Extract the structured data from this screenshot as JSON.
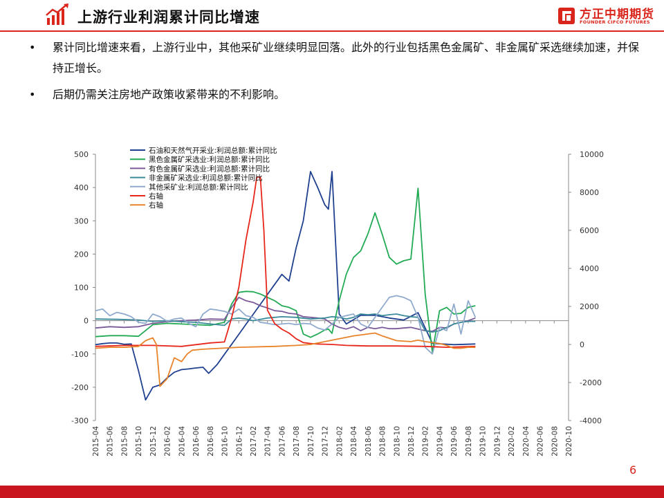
{
  "header": {
    "title": "上游行业利润累计同比增速",
    "brand_cn": "方正中期期货",
    "brand_en": "FOUNDER CIFCO FUTURES"
  },
  "bullets": [
    "累计同比增速来看，上游行业中，其他采矿业继续明显回落。此外的行业包括黑色金属矿、非金属矿采选继续加速，并保持正增长。",
    "后期仍需关注房地产政策收紧带来的不利影响。"
  ],
  "page_number": "6",
  "colors": {
    "accent": "#d9251c",
    "oil": "#1f3f8f",
    "ferrous": "#22aa55",
    "nonferrous": "#7a5a99",
    "nonmetal": "#3a8a9a",
    "other": "#8faacc",
    "right_red": "#e8251a",
    "right_orange": "#e8832a"
  },
  "chart_data": {
    "type": "line",
    "x": [
      "2015-04",
      "2015-06",
      "2015-08",
      "2015-10",
      "2015-12",
      "2016-02",
      "2016-04",
      "2016-06",
      "2016-08",
      "2016-10",
      "2016-12",
      "2017-02",
      "2017-04",
      "2017-06",
      "2017-08",
      "2017-10",
      "2017-12",
      "2018-02",
      "2018-04",
      "2018-06",
      "2018-08",
      "2018-10",
      "2018-12",
      "2019-02",
      "2019-04",
      "2019-06",
      "2019-08",
      "2019-10",
      "2019-12",
      "2020-02",
      "2020-04",
      "2020-06",
      "2020-08",
      "2020-10"
    ],
    "yleft_ticks": [
      "500",
      "400",
      "300",
      "200",
      "100",
      "0",
      "-100",
      "-200",
      "-300"
    ],
    "yright_ticks": [
      "10000",
      "8000",
      "6000",
      "4000",
      "2000",
      "0",
      "-2000",
      "-4000"
    ],
    "yleft_lim": [
      -300,
      500
    ],
    "yright_lim": [
      -4000,
      10000
    ],
    "legend_position": "top-left",
    "series": [
      {
        "name": "石油和天然气开采业:利润总额:累计同比",
        "axis": "left",
        "color_key": "oil",
        "values": [
          [
            0,
            -72
          ],
          [
            1,
            -69
          ],
          [
            2,
            -67
          ],
          [
            3,
            -67
          ],
          [
            4,
            -71
          ],
          [
            5,
            -70
          ],
          [
            6,
            -150
          ],
          [
            7,
            -238
          ],
          [
            8,
            -200
          ],
          [
            9,
            -193
          ],
          [
            10,
            -172
          ],
          [
            11,
            -155
          ],
          [
            12,
            -147
          ],
          [
            13,
            -145
          ],
          [
            14,
            -142
          ],
          [
            15,
            -140
          ],
          [
            15.8,
            -158
          ],
          [
            17,
            -131
          ],
          [
            18,
            -101
          ],
          [
            19,
            -71
          ],
          [
            20,
            -41
          ],
          [
            21,
            -11
          ],
          [
            22,
            19
          ],
          [
            23,
            49
          ],
          [
            24,
            79
          ],
          [
            25,
            109
          ],
          [
            26,
            139
          ],
          [
            27,
            119
          ],
          [
            28,
            219
          ],
          [
            29,
            300
          ],
          [
            30,
            448
          ],
          [
            31,
            400
          ],
          [
            32,
            348
          ],
          [
            32.5,
            335
          ],
          [
            33,
            448
          ],
          [
            34,
            20
          ],
          [
            35,
            -10
          ],
          [
            37,
            16
          ],
          [
            39,
            16
          ],
          [
            41,
            8
          ],
          [
            43,
            2
          ],
          [
            45,
            24
          ],
          [
            47,
            -68
          ],
          [
            50,
            -72
          ],
          [
            53,
            -70
          ]
        ]
      },
      {
        "name": "黑色金属矿采选业:利润总额:累计同比",
        "axis": "left",
        "color_key": "ferrous",
        "values": [
          [
            0,
            -48
          ],
          [
            2,
            -45
          ],
          [
            4,
            -45
          ],
          [
            6,
            -47
          ],
          [
            8,
            -12
          ],
          [
            10,
            -8
          ],
          [
            12,
            -10
          ],
          [
            14,
            -12
          ],
          [
            16,
            -14
          ],
          [
            18,
            -5
          ],
          [
            19,
            50
          ],
          [
            20,
            85
          ],
          [
            21,
            88
          ],
          [
            22,
            87
          ],
          [
            23,
            80
          ],
          [
            24,
            70
          ],
          [
            25,
            60
          ],
          [
            26,
            45
          ],
          [
            27,
            40
          ],
          [
            28,
            30
          ],
          [
            29,
            -40
          ],
          [
            30,
            -50
          ],
          [
            31,
            -40
          ],
          [
            32,
            -28
          ],
          [
            32.5,
            -25
          ],
          [
            33,
            -38
          ],
          [
            34,
            60
          ],
          [
            35,
            140
          ],
          [
            36,
            190
          ],
          [
            37,
            210
          ],
          [
            38,
            260
          ],
          [
            39,
            324
          ],
          [
            40,
            260
          ],
          [
            41,
            190
          ],
          [
            42,
            170
          ],
          [
            43,
            180
          ],
          [
            44,
            185
          ],
          [
            45,
            398
          ],
          [
            46,
            80
          ],
          [
            47,
            -95
          ],
          [
            48,
            30
          ],
          [
            49,
            40
          ],
          [
            50,
            20
          ],
          [
            51,
            22
          ],
          [
            52,
            40
          ],
          [
            53,
            45
          ]
        ]
      },
      {
        "name": "有色金属矿采选业:利润总额:累计同比",
        "axis": "left",
        "color_key": "nonferrous",
        "values": [
          [
            0,
            -22
          ],
          [
            2,
            -18
          ],
          [
            4,
            -20
          ],
          [
            6,
            -18
          ],
          [
            8,
            -8
          ],
          [
            10,
            -3
          ],
          [
            12,
            0
          ],
          [
            14,
            2
          ],
          [
            16,
            5
          ],
          [
            18,
            4
          ],
          [
            19,
            40
          ],
          [
            20,
            70
          ],
          [
            21,
            60
          ],
          [
            22,
            55
          ],
          [
            23,
            45
          ],
          [
            24,
            38
          ],
          [
            25,
            30
          ],
          [
            26,
            28
          ],
          [
            27,
            22
          ],
          [
            28,
            20
          ],
          [
            29,
            12
          ],
          [
            30,
            10
          ],
          [
            31,
            8
          ],
          [
            32,
            5
          ],
          [
            33,
            -10
          ],
          [
            34,
            -20
          ],
          [
            35,
            -25
          ],
          [
            36,
            -18
          ],
          [
            37,
            -30
          ],
          [
            38,
            -20
          ],
          [
            39,
            -24
          ],
          [
            40,
            -20
          ],
          [
            41,
            -24
          ],
          [
            42,
            -24
          ],
          [
            43,
            -22
          ],
          [
            44,
            -20
          ],
          [
            45,
            -25
          ],
          [
            46,
            -30
          ],
          [
            47,
            -32
          ],
          [
            48,
            -20
          ],
          [
            49,
            -22
          ],
          [
            50,
            -10
          ],
          [
            51,
            -5
          ],
          [
            52,
            0
          ],
          [
            53,
            8
          ]
        ]
      },
      {
        "name": "非金属矿采选业:利润总额:累计同比",
        "axis": "left",
        "color_key": "nonmetal",
        "values": [
          [
            0,
            5
          ],
          [
            3,
            4
          ],
          [
            6,
            2
          ],
          [
            8,
            -2
          ],
          [
            10,
            0
          ],
          [
            12,
            -3
          ],
          [
            14,
            -5
          ],
          [
            16,
            -10
          ],
          [
            18,
            -14
          ],
          [
            19,
            5
          ],
          [
            20,
            8
          ],
          [
            21,
            5
          ],
          [
            22,
            0
          ],
          [
            24,
            8
          ],
          [
            26,
            12
          ],
          [
            28,
            10
          ],
          [
            30,
            5
          ],
          [
            32,
            8
          ],
          [
            33,
            12
          ],
          [
            34,
            10
          ],
          [
            35,
            5
          ],
          [
            36,
            10
          ],
          [
            37,
            20
          ],
          [
            38,
            18
          ],
          [
            39,
            20
          ],
          [
            40,
            15
          ],
          [
            41,
            18
          ],
          [
            42,
            20
          ],
          [
            43,
            15
          ],
          [
            44,
            12
          ],
          [
            45,
            10
          ],
          [
            46,
            -30
          ],
          [
            47,
            -34
          ],
          [
            48,
            -30
          ],
          [
            49,
            -20
          ],
          [
            50,
            -10
          ],
          [
            51,
            -5
          ],
          [
            52,
            -2
          ],
          [
            53,
            -2
          ]
        ]
      },
      {
        "name": "其他采矿业:利润总额:累计同比",
        "axis": "left",
        "color_key": "other",
        "values": [
          [
            0,
            30
          ],
          [
            1,
            35
          ],
          [
            2,
            15
          ],
          [
            3,
            25
          ],
          [
            4,
            20
          ],
          [
            5,
            12
          ],
          [
            6,
            -5
          ],
          [
            7,
            -8
          ],
          [
            8,
            20
          ],
          [
            9,
            12
          ],
          [
            10,
            -2
          ],
          [
            11,
            5
          ],
          [
            12,
            8
          ],
          [
            13,
            -8
          ],
          [
            14,
            -18
          ],
          [
            15,
            20
          ],
          [
            16,
            35
          ],
          [
            17,
            32
          ],
          [
            18,
            28
          ],
          [
            19,
            20
          ],
          [
            20,
            35
          ],
          [
            21,
            15
          ],
          [
            22,
            10
          ],
          [
            23,
            -5
          ],
          [
            24,
            -8
          ],
          [
            25,
            -12
          ],
          [
            26,
            -10
          ],
          [
            27,
            -8
          ],
          [
            28,
            -12
          ],
          [
            29,
            -8
          ],
          [
            30,
            -10
          ],
          [
            31,
            -22
          ],
          [
            32,
            -28
          ],
          [
            33,
            -10
          ],
          [
            34,
            10
          ],
          [
            35,
            15
          ],
          [
            36,
            20
          ],
          [
            37,
            -10
          ],
          [
            38,
            -20
          ],
          [
            39,
            10
          ],
          [
            40,
            40
          ],
          [
            41,
            70
          ],
          [
            42,
            75
          ],
          [
            43,
            70
          ],
          [
            44,
            60
          ],
          [
            45,
            10
          ],
          [
            46,
            -80
          ],
          [
            47,
            -100
          ],
          [
            48,
            -20
          ],
          [
            49,
            -30
          ],
          [
            50,
            50
          ],
          [
            51,
            -40
          ],
          [
            52,
            60
          ],
          [
            53,
            10
          ]
        ]
      },
      {
        "name": "右轴",
        "axis": "right",
        "color_key": "right_red",
        "values": [
          [
            0,
            -100
          ],
          [
            4,
            -50
          ],
          [
            8,
            -50
          ],
          [
            12,
            -100
          ],
          [
            16,
            80
          ],
          [
            18,
            130
          ],
          [
            19,
            1400
          ],
          [
            20,
            3000
          ],
          [
            21,
            5500
          ],
          [
            22,
            7500
          ],
          [
            22.5,
            8800
          ],
          [
            23,
            8800
          ],
          [
            23.5,
            6000
          ],
          [
            24,
            1800
          ],
          [
            25,
            1100
          ],
          [
            26,
            800
          ],
          [
            27,
            600
          ],
          [
            28,
            300
          ],
          [
            29,
            100
          ],
          [
            30,
            50
          ],
          [
            31,
            20
          ],
          [
            33,
            0
          ],
          [
            35,
            -50
          ],
          [
            38,
            -80
          ],
          [
            42,
            -80
          ],
          [
            46,
            -100
          ],
          [
            49,
            -150
          ],
          [
            53,
            -100
          ]
        ]
      },
      {
        "name": "右轴",
        "axis": "right",
        "color_key": "right_orange",
        "values": [
          [
            0,
            -200
          ],
          [
            2,
            -150
          ],
          [
            4,
            -150
          ],
          [
            6,
            -100
          ],
          [
            7,
            200
          ],
          [
            8,
            350
          ],
          [
            8.5,
            0
          ],
          [
            9,
            -2200
          ],
          [
            10,
            -1800
          ],
          [
            11,
            -700
          ],
          [
            12,
            -900
          ],
          [
            12.8,
            -500
          ],
          [
            13.5,
            -300
          ],
          [
            15,
            -250
          ],
          [
            20,
            -150
          ],
          [
            25,
            -100
          ],
          [
            28,
            -50
          ],
          [
            30,
            0
          ],
          [
            32,
            150
          ],
          [
            34,
            300
          ],
          [
            36,
            450
          ],
          [
            38,
            550
          ],
          [
            39,
            600
          ],
          [
            40,
            450
          ],
          [
            42,
            200
          ],
          [
            44,
            150
          ],
          [
            45,
            230
          ],
          [
            46,
            150
          ],
          [
            48,
            50
          ],
          [
            49,
            -50
          ],
          [
            50,
            -200
          ],
          [
            51,
            -200
          ],
          [
            52,
            -150
          ],
          [
            53,
            -150
          ]
        ]
      }
    ]
  }
}
